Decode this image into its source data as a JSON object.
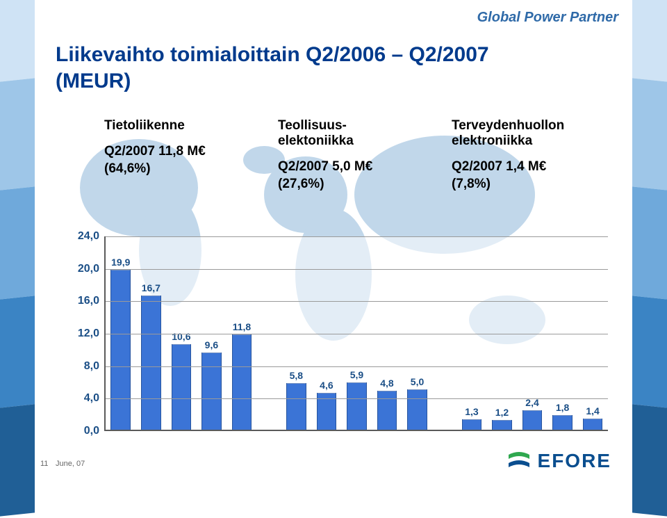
{
  "tagline": {
    "text": "Global Power Partner",
    "color": "#2f6aa8"
  },
  "title": {
    "line1": "Liikevaihto toimialoittain Q2/2006 – Q2/2007",
    "line2": "(MEUR)",
    "color": "#003a8c"
  },
  "categories": {
    "telecom": {
      "name": "Tietoliikenne",
      "value_line": "Q2/2007 11,8 M€",
      "share_line": "(64,6%)"
    },
    "industrial": {
      "name": "Teollisuus-elektoniikka",
      "name_line1": "Teollisuus-",
      "name_line2": "elektoniikka",
      "value_line": "Q2/2007 5,0 M€",
      "share_line": "(27,6%)"
    },
    "healthcare": {
      "name_line1": "Terveydenhuollon",
      "name_line2": "elektroniikka",
      "value_line": "Q2/2007 1,4 M€",
      "share_line": "(7,8%)"
    },
    "text_color": "#000000",
    "fontsize": 19
  },
  "chart": {
    "type": "bar",
    "y_ticks": [
      "0,0",
      "4,0",
      "8,0",
      "12,0",
      "16,0",
      "20,0",
      "24,0"
    ],
    "y_max": 24.0,
    "y_step": 4.0,
    "tick_fontsize": 16,
    "tick_color": "#1a4e86",
    "axis_color": "#5a5a5a",
    "grid_color": "#9a9a9a",
    "bar_fill": "#3b74d6",
    "bar_border": "#27549e",
    "value_label_color": "#1a4e86",
    "value_label_fontsize": 14,
    "groups": [
      {
        "bars": [
          {
            "value": 19.9,
            "label": "19,9"
          },
          {
            "value": 16.7,
            "label": "16,7"
          },
          {
            "value": 10.6,
            "label": "10,6"
          },
          {
            "value": 9.6,
            "label": "9,6"
          },
          {
            "value": 11.8,
            "label": "11,8"
          }
        ]
      },
      {
        "bars": [
          {
            "value": 5.8,
            "label": "5,8"
          },
          {
            "value": 4.6,
            "label": "4,6"
          },
          {
            "value": 5.9,
            "label": "5,9"
          },
          {
            "value": 4.8,
            "label": "4,8"
          },
          {
            "value": 5.0,
            "label": "5,0"
          }
        ]
      },
      {
        "bars": [
          {
            "value": 1.3,
            "label": "1,3"
          },
          {
            "value": 1.2,
            "label": "1,2"
          },
          {
            "value": 2.4,
            "label": "2,4"
          },
          {
            "value": 1.8,
            "label": "1,8"
          },
          {
            "value": 1.4,
            "label": "1,4"
          }
        ]
      }
    ],
    "background_color": "#ffffff"
  },
  "side_strip_colors": [
    "#cfe3f5",
    "#9ec6e8",
    "#6fa9db",
    "#3b84c4",
    "#205f96"
  ],
  "worldmap_color": "#8fb8da",
  "logo": {
    "text": "EFORE",
    "color": "#0a4e8f",
    "accent": "#2fa84f"
  },
  "footer": {
    "page": "11",
    "date": "June, 07"
  }
}
